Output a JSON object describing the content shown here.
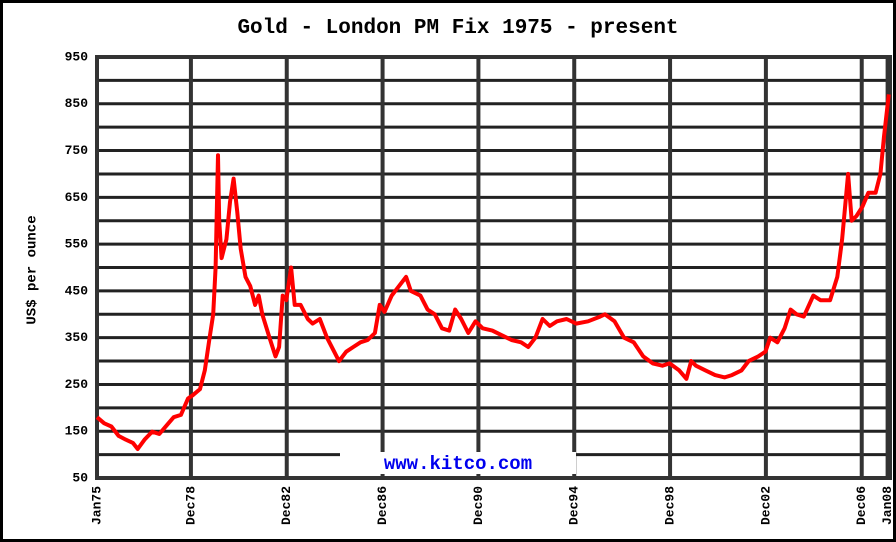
{
  "chart_data": {
    "type": "line",
    "title": "Gold - London PM Fix 1975 - present",
    "y_label": "US$ per ounce",
    "watermark": "www.kitco.com",
    "xlim": [
      1975,
      2008.1
    ],
    "ylim": [
      50,
      950
    ],
    "yticks": [
      50,
      150,
      250,
      350,
      450,
      550,
      650,
      750,
      850,
      950
    ],
    "minor_yticks": [
      100,
      200,
      300,
      400,
      500,
      600,
      700,
      800,
      900
    ],
    "xticks": [
      {
        "value": 1975.0,
        "label": "Jan75"
      },
      {
        "value": 1978.92,
        "label": "Dec78"
      },
      {
        "value": 1982.92,
        "label": "Dec82"
      },
      {
        "value": 1986.92,
        "label": "Dec86"
      },
      {
        "value": 1990.92,
        "label": "Dec90"
      },
      {
        "value": 1994.92,
        "label": "Dec94"
      },
      {
        "value": 1998.92,
        "label": "Dec98"
      },
      {
        "value": 2002.92,
        "label": "Dec02"
      },
      {
        "value": 2006.92,
        "label": "Dec06"
      },
      {
        "value": 2008.0,
        "label": "Jan08"
      }
    ],
    "grid": true,
    "series": [
      {
        "color": "#ff0000",
        "x": [
          1975.0,
          1975.3,
          1975.6,
          1975.9,
          1976.2,
          1976.5,
          1976.7,
          1977.0,
          1977.3,
          1977.6,
          1977.9,
          1978.2,
          1978.5,
          1978.8,
          1979.0,
          1979.3,
          1979.5,
          1979.7,
          1979.85,
          1979.95,
          1980.05,
          1980.1,
          1980.2,
          1980.4,
          1980.55,
          1980.7,
          1980.85,
          1981.0,
          1981.2,
          1981.4,
          1981.6,
          1981.75,
          1981.9,
          1982.2,
          1982.45,
          1982.6,
          1982.75,
          1982.9,
          1983.1,
          1983.25,
          1983.5,
          1983.8,
          1984.0,
          1984.3,
          1984.6,
          1984.9,
          1985.1,
          1985.4,
          1985.7,
          1986.0,
          1986.3,
          1986.6,
          1986.8,
          1987.0,
          1987.3,
          1987.6,
          1987.9,
          1988.1,
          1988.5,
          1988.8,
          1989.1,
          1989.4,
          1989.7,
          1989.95,
          1990.2,
          1990.5,
          1990.8,
          1991.1,
          1991.5,
          1991.9,
          1992.3,
          1992.7,
          1993.0,
          1993.3,
          1993.6,
          1993.9,
          1994.2,
          1994.6,
          1995.0,
          1995.5,
          1996.0,
          1996.2,
          1996.6,
          1997.0,
          1997.4,
          1997.8,
          1998.2,
          1998.6,
          1998.9,
          1999.3,
          1999.6,
          1999.8,
          2000.0,
          2000.4,
          2000.8,
          2001.2,
          2001.5,
          2001.9,
          2002.2,
          2002.6,
          2002.9,
          2003.1,
          2003.4,
          2003.7,
          2003.95,
          2004.2,
          2004.5,
          2004.9,
          2005.2,
          2005.6,
          2005.9,
          2006.1,
          2006.35,
          2006.5,
          2006.7,
          2006.95,
          2007.2,
          2007.5,
          2007.7,
          2007.85,
          2008.05
        ],
        "values": [
          180,
          167,
          160,
          140,
          132,
          125,
          112,
          133,
          149,
          144,
          162,
          180,
          185,
          220,
          227,
          240,
          280,
          350,
          400,
          500,
          740,
          600,
          520,
          560,
          640,
          690,
          620,
          540,
          480,
          460,
          420,
          440,
          400,
          350,
          310,
          330,
          440,
          430,
          500,
          420,
          420,
          390,
          380,
          390,
          350,
          320,
          300,
          320,
          330,
          340,
          345,
          360,
          420,
          405,
          440,
          460,
          480,
          450,
          440,
          410,
          400,
          370,
          365,
          410,
          390,
          360,
          385,
          370,
          365,
          355,
          345,
          340,
          330,
          350,
          390,
          375,
          385,
          390,
          380,
          385,
          395,
          400,
          385,
          350,
          340,
          310,
          295,
          290,
          295,
          280,
          262,
          300,
          290,
          280,
          270,
          265,
          270,
          280,
          300,
          310,
          320,
          350,
          340,
          370,
          410,
          400,
          395,
          440,
          430,
          430,
          480,
          560,
          700,
          600,
          610,
          630,
          660,
          660,
          700,
          780,
          870
        ]
      }
    ]
  }
}
